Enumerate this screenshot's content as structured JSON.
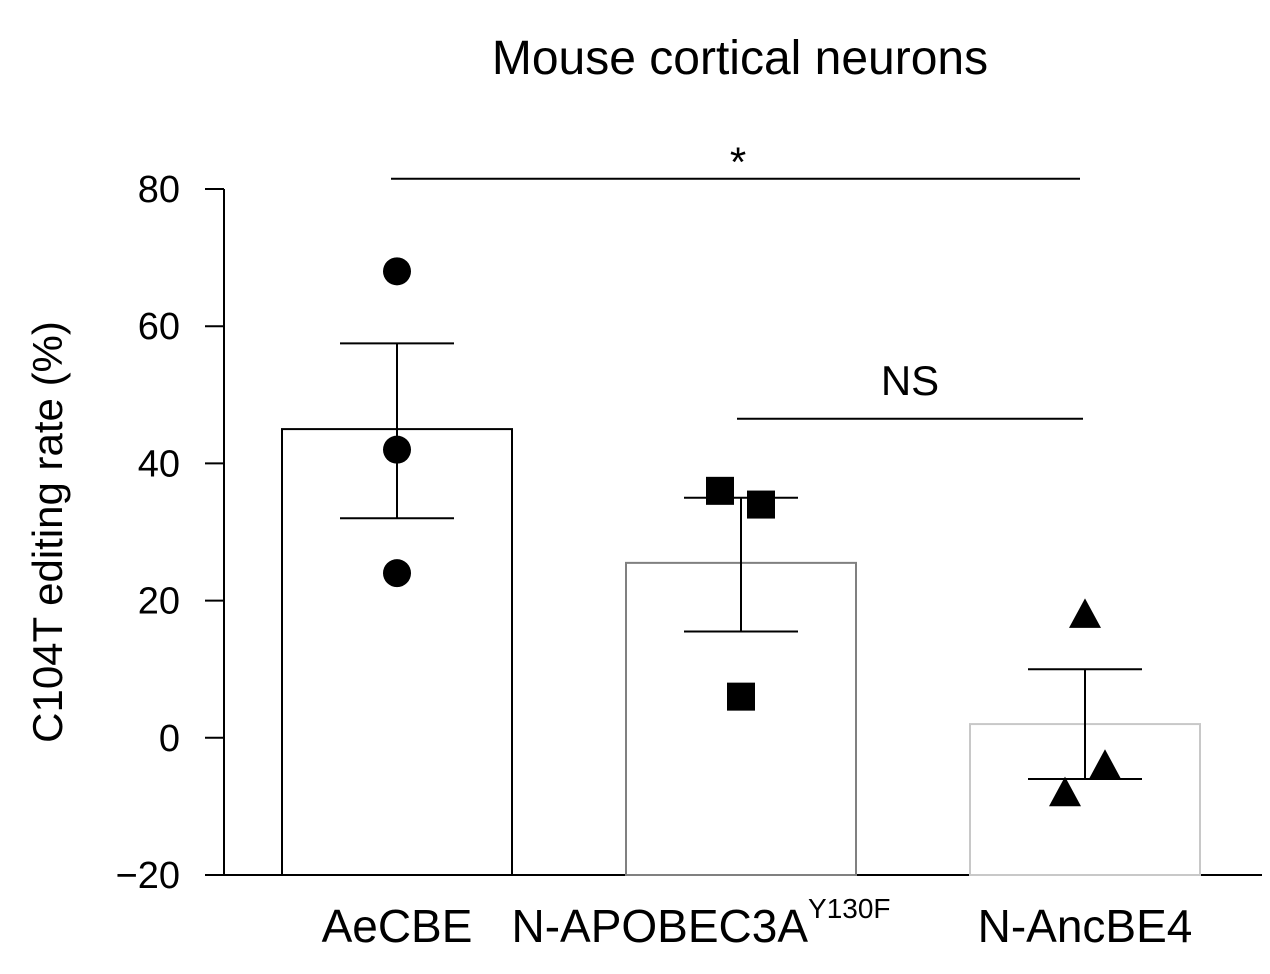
{
  "chart_data": {
    "type": "bar",
    "title": "Mouse cortical neurons",
    "ylabel": "C104T editing rate (%)",
    "xlabel": "",
    "ylim": [
      -20,
      80
    ],
    "yticks": [
      -20,
      0,
      20,
      40,
      60,
      80
    ],
    "ytick_labels": [
      "−20",
      "0",
      "20",
      "40",
      "60",
      "80"
    ],
    "categories": [
      {
        "label": "AeCBE",
        "superscript": ""
      },
      {
        "label": "N-APOBEC3A",
        "superscript": "Y130F"
      },
      {
        "label": "N-AncBE4",
        "superscript": ""
      }
    ],
    "values": [
      45,
      25.5,
      2
    ],
    "error": [
      {
        "low": 32,
        "high": 57.5
      },
      {
        "low": 15.5,
        "high": 35
      },
      {
        "low": -6,
        "high": 10
      }
    ],
    "bar_edge_colors": [
      "#000000",
      "#808080",
      "#c8c8c8"
    ],
    "points": [
      {
        "category": 0,
        "marker": "circle",
        "values": [
          68,
          42,
          24
        ]
      },
      {
        "category": 1,
        "marker": "square",
        "values": [
          36,
          34,
          6
        ]
      },
      {
        "category": 2,
        "marker": "triangle",
        "values": [
          18,
          -4,
          -8
        ]
      }
    ],
    "significance": [
      {
        "from": 0,
        "to": 2,
        "label": "*",
        "y": 81.5
      },
      {
        "from": 1,
        "to": 2,
        "label": "NS",
        "y": 46.5
      }
    ]
  }
}
